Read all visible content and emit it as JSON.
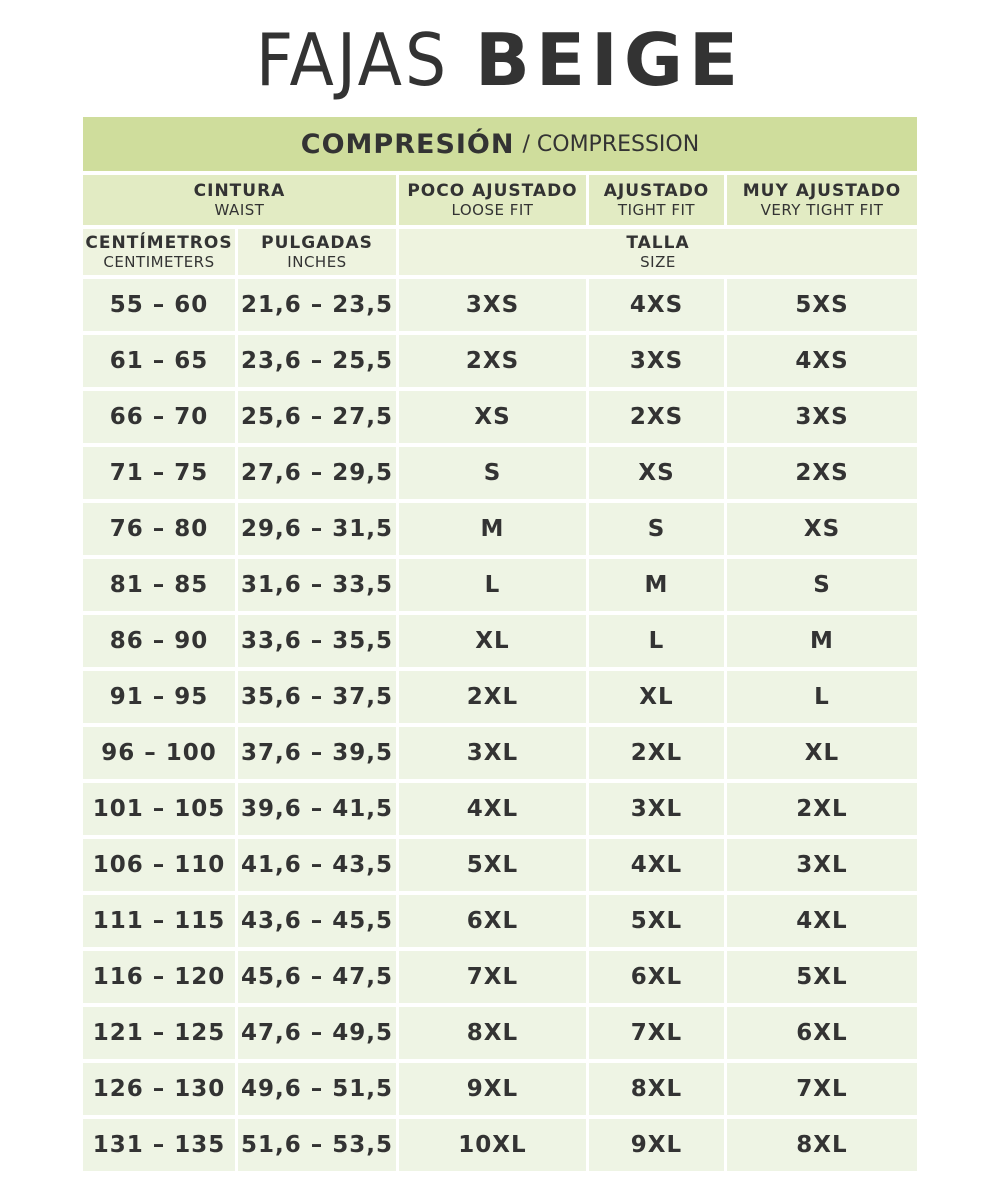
{
  "title": {
    "light": "FAJAS",
    "bold": "BEIGE"
  },
  "band": {
    "es": "COMPRESIÓN",
    "en": "/ COMPRESSION"
  },
  "headers": {
    "waist": {
      "es": "CINTURA",
      "en": "WAIST"
    },
    "loose": {
      "es": "POCO AJUSTADO",
      "en": "LOOSE FIT"
    },
    "tight": {
      "es": "AJUSTADO",
      "en": "TIGHT FIT"
    },
    "very": {
      "es": "MUY AJUSTADO",
      "en": "VERY TIGHT FIT"
    },
    "cm": {
      "es": "CENTÍMETROS",
      "en": "CENTIMETERS"
    },
    "in": {
      "es": "PULGADAS",
      "en": "INCHES"
    },
    "size": {
      "es": "TALLA",
      "en": "SIZE"
    }
  },
  "rows": [
    [
      "55 – 60",
      "21,6 – 23,5",
      "3XS",
      "4XS",
      "5XS"
    ],
    [
      "61 – 65",
      "23,6 – 25,5",
      "2XS",
      "3XS",
      "4XS"
    ],
    [
      "66 – 70",
      "25,6 – 27,5",
      "XS",
      "2XS",
      "3XS"
    ],
    [
      "71 – 75",
      "27,6 – 29,5",
      "S",
      "XS",
      "2XS"
    ],
    [
      "76 – 80",
      "29,6 – 31,5",
      "M",
      "S",
      "XS"
    ],
    [
      "81 – 85",
      "31,6 – 33,5",
      "L",
      "M",
      "S"
    ],
    [
      "86 – 90",
      "33,6 – 35,5",
      "XL",
      "L",
      "M"
    ],
    [
      "91 – 95",
      "35,6 – 37,5",
      "2XL",
      "XL",
      "L"
    ],
    [
      "96 – 100",
      "37,6 – 39,5",
      "3XL",
      "2XL",
      "XL"
    ],
    [
      "101 – 105",
      "39,6 – 41,5",
      "4XL",
      "3XL",
      "2XL"
    ],
    [
      "106 – 110",
      "41,6 – 43,5",
      "5XL",
      "4XL",
      "3XL"
    ],
    [
      "111 – 115",
      "43,6 – 45,5",
      "6XL",
      "5XL",
      "4XL"
    ],
    [
      "116 – 120",
      "45,6 – 47,5",
      "7XL",
      "6XL",
      "5XL"
    ],
    [
      "121 – 125",
      "47,6 – 49,5",
      "8XL",
      "7XL",
      "6XL"
    ],
    [
      "126 – 130",
      "49,6 – 51,5",
      "9XL",
      "8XL",
      "7XL"
    ],
    [
      "131 – 135",
      "51,6 – 53,5",
      "10XL",
      "9XL",
      "8XL"
    ]
  ]
}
